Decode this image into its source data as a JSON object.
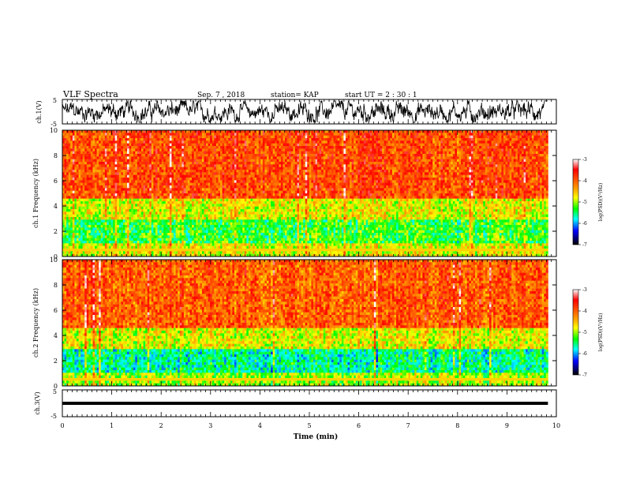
{
  "header": {
    "title": "VLF Spectra",
    "date": "Sep. 7  , 2018",
    "station": "station= KAP",
    "start_time": "start  UT =  2 : 30 : 1"
  },
  "colorbar": {
    "label": "log(PSD)(V²/Hz)",
    "ticks": [
      "-3",
      "-4",
      "-5",
      "-6",
      "-7"
    ],
    "stops": [
      "#ffffff",
      "#ff0000",
      "#ffa500",
      "#ffff00",
      "#00ff00",
      "#00ffff",
      "#0000ff",
      "#000000"
    ]
  },
  "chart_data": [
    {
      "type": "line",
      "panel": "ch1-waveform",
      "ylabel": "ch.1(V)",
      "ylim": [
        -5,
        5
      ],
      "ytick_labels": [
        "5",
        "-5"
      ],
      "x_range_min": [
        0,
        9.83
      ],
      "y_behavior": "noisy waveform oscillating roughly between -4 and 4 V"
    },
    {
      "type": "heatmap",
      "panel": "ch1-spectrogram",
      "ylabel": "ch.1  Frequency (kHz)",
      "ylim": [
        0,
        10
      ],
      "ytick_labels": [
        "0",
        "2",
        "4",
        "6",
        "8",
        "10"
      ],
      "xlim": [
        0,
        9.83
      ],
      "value_range": [
        -7,
        -3
      ],
      "bands": [
        {
          "from_khz": 0,
          "to_khz": 1,
          "level": -4.8
        },
        {
          "from_khz": 1,
          "to_khz": 3,
          "level": -5.3
        },
        {
          "from_khz": 3,
          "to_khz": 4.5,
          "level": -4.8
        },
        {
          "from_khz": 4.5,
          "to_khz": 10,
          "level": -3.9
        }
      ]
    },
    {
      "type": "heatmap",
      "panel": "ch2-spectrogram",
      "ylabel": "ch.2  Frequency (kHz)",
      "ylim": [
        0,
        10
      ],
      "ytick_labels": [
        "0",
        "2",
        "4",
        "6",
        "8",
        "10"
      ],
      "xlim": [
        0,
        9.83
      ],
      "value_range": [
        -7,
        -3
      ],
      "bands": [
        {
          "from_khz": 0,
          "to_khz": 1,
          "level": -5.0
        },
        {
          "from_khz": 1,
          "to_khz": 3,
          "level": -5.6
        },
        {
          "from_khz": 3,
          "to_khz": 4.5,
          "level": -4.8
        },
        {
          "from_khz": 4.5,
          "to_khz": 10,
          "level": -4.0
        }
      ]
    },
    {
      "type": "line",
      "panel": "ch3-waveform",
      "ylabel": "ch.3(V)",
      "ylim": [
        -5,
        5
      ],
      "ytick_labels": [
        "5",
        "-5"
      ],
      "x_range_min": [
        0,
        9.83
      ],
      "constant_value": 0
    }
  ],
  "xaxis": {
    "label": "Time (min)",
    "xlim": [
      0,
      10
    ],
    "tick_labels": [
      "0",
      "1",
      "2",
      "3",
      "4",
      "5",
      "6",
      "7",
      "8",
      "9",
      "10"
    ]
  }
}
